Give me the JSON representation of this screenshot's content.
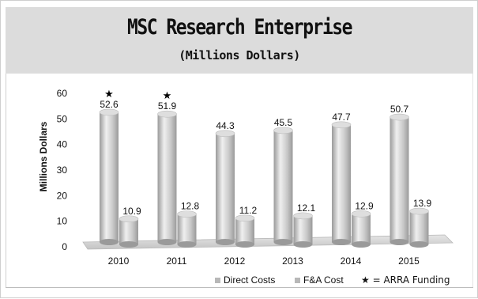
{
  "chart_data": {
    "type": "bar",
    "title": "MSC Research Enterprise",
    "subtitle": "(Millions Dollars)",
    "ylabel": "Millions Dollars",
    "xlabel": "",
    "ylim": [
      0,
      60
    ],
    "yticks": [
      "0",
      "10",
      "20",
      "30",
      "40",
      "50",
      "60"
    ],
    "categories": [
      "2010",
      "2011",
      "2012",
      "2013",
      "2014",
      "2015"
    ],
    "series": [
      {
        "name": "Direct Costs",
        "values": [
          52.6,
          51.9,
          44.3,
          45.5,
          47.7,
          50.7
        ],
        "labels": [
          "52.6",
          "51.9",
          "44.3",
          "45.5",
          "47.7",
          "50.7"
        ]
      },
      {
        "name": "F&A Cost",
        "values": [
          10.9,
          12.8,
          11.2,
          12.1,
          12.9,
          13.9
        ],
        "labels": [
          "10.9",
          "12.8",
          "11.2",
          "12.1",
          "12.9",
          "13.9"
        ]
      }
    ],
    "arra_marked": [
      true,
      true,
      false,
      false,
      false,
      false
    ],
    "legend": [
      "Direct Costs",
      "F&A Cost",
      "★ = ARRA Funding"
    ],
    "legend_position": "bottom",
    "grid": false,
    "colors": {
      "bar": "#c9c9c9",
      "bar_dark": "#9a9a9a",
      "bar_light": "#efefef",
      "floor": "#d8d8d8",
      "header": "#dcdcdc"
    }
  }
}
